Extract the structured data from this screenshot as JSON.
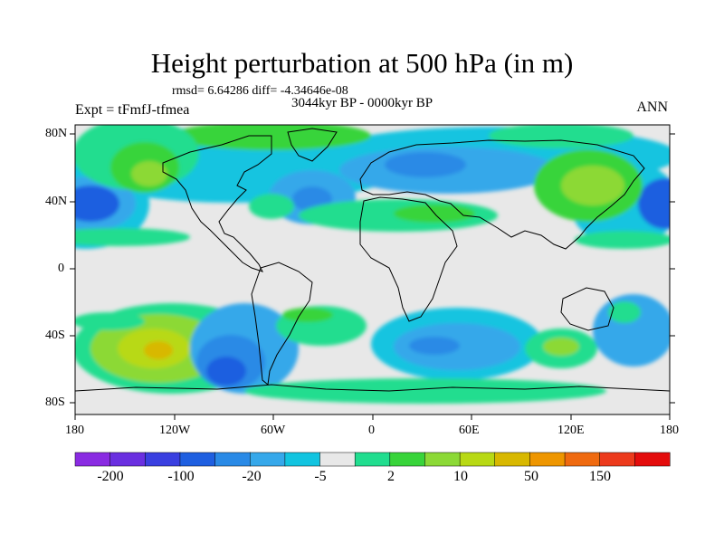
{
  "title": "Height perturbation at 500 hPa (in m)",
  "stats": {
    "rmsd_label": "rmsd= 6.64286",
    "diff_label": "diff= -4.34646e-08"
  },
  "period": "3044kyr BP - 0000kyr BP",
  "experiment": "Expt = tFmfJ-tfmea",
  "season": "ANN",
  "map": {
    "lat_ticks": [
      "80N",
      "40N",
      "0",
      "40S",
      "80S"
    ],
    "lon_ticks": [
      "180",
      "120W",
      "60W",
      "0",
      "60E",
      "120E",
      "180"
    ],
    "background_color": "#e8e8e8",
    "coastline_color": "#000000"
  },
  "colorbar": {
    "colors": [
      "#8a2be2",
      "#6a2fe0",
      "#3a3fe0",
      "#1f5fe0",
      "#2a8ae6",
      "#36a8ea",
      "#12c4e0",
      "#e8e8e8",
      "#21dd8f",
      "#38d43a",
      "#8cd936",
      "#b8d914",
      "#d8b800",
      "#ee9600",
      "#ef6a10",
      "#ec3a1c",
      "#e40c0c"
    ],
    "labels": [
      "-200",
      "-100",
      "-20",
      "-5",
      "2",
      "10",
      "50",
      "150"
    ]
  }
}
